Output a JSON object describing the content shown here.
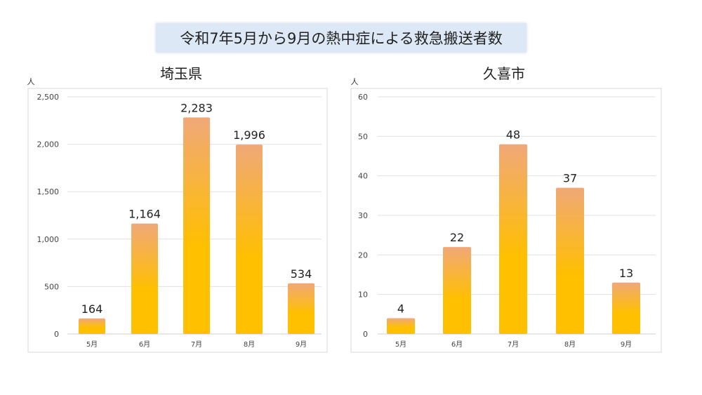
{
  "header": {
    "title": "令和7年5月から9月の熱中症による救急搬送者数"
  },
  "colors": {
    "bar_top": "#f0a878",
    "bar_bottom": "#ffc000",
    "title_bg": "#dce8f5",
    "grid": "#dddddd"
  },
  "chart_data": [
    {
      "type": "bar",
      "title": "埼玉県",
      "ylabel": "人",
      "categories": [
        "5月",
        "6月",
        "7月",
        "8月",
        "9月"
      ],
      "values": [
        164,
        1164,
        2283,
        1996,
        534
      ],
      "data_labels": [
        "164",
        "1,164",
        "2,283",
        "1,996",
        "534"
      ],
      "ylim": [
        0,
        2500
      ],
      "yticks": [
        0,
        500,
        1000,
        1500,
        2000,
        2500
      ],
      "ytick_labels": [
        "0",
        "500",
        "1,000",
        "1,500",
        "2,000",
        "2,500"
      ],
      "grid": true
    },
    {
      "type": "bar",
      "title": "久喜市",
      "ylabel": "人",
      "categories": [
        "5月",
        "6月",
        "7月",
        "8月",
        "9月"
      ],
      "values": [
        4,
        22,
        48,
        37,
        13
      ],
      "data_labels": [
        "4",
        "22",
        "48",
        "37",
        "13"
      ],
      "ylim": [
        0,
        60
      ],
      "yticks": [
        0,
        10,
        20,
        30,
        40,
        50,
        60
      ],
      "ytick_labels": [
        "0",
        "10",
        "20",
        "30",
        "40",
        "50",
        "60"
      ],
      "grid": true
    }
  ]
}
